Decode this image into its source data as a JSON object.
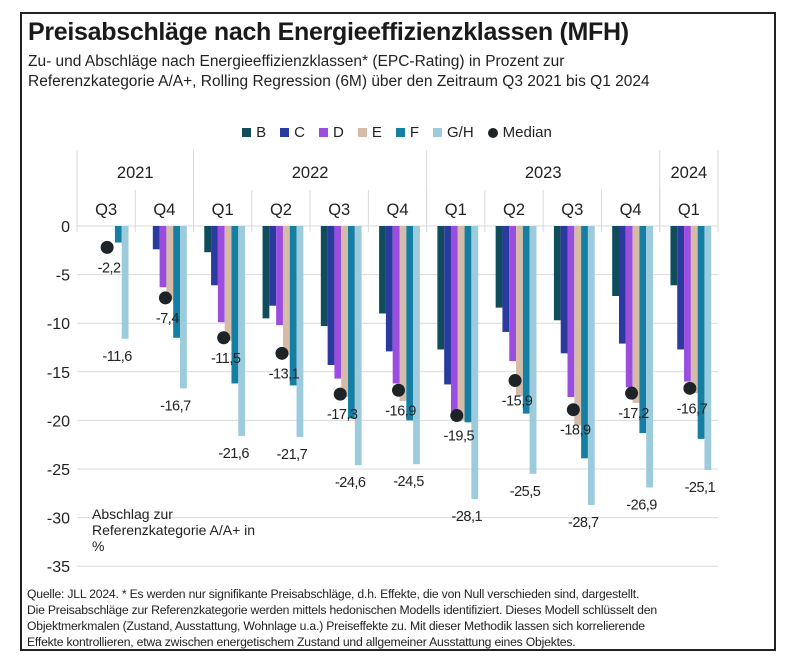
{
  "title": "Preisabschläge nach Energieeffizienzklassen (MFH)",
  "subtitle_line1": "Zu- und Abschläge nach Energieeffizienzklassen* (EPC-Rating) in Prozent zur",
  "subtitle_line2": "Referenzkategorie A/A+, Rolling Regression (6M) über den Zeitraum Q3 2021 bis Q1 2024",
  "footer_lines": [
    "Quelle: JLL 2024. * Es werden nur signifikante Preisabschläge, d.h. Effekte, die von Null verschieden sind, dargestellt.",
    "Die Preisabschläge zur Referenzkategorie werden mittels hedonischen Modells identifiziert. Dieses Modell schlüsselt den",
    "Objektmerkmalen (Zustand, Ausstattung, Wohnlage u.a.) Preiseffekte zu. Mit dieser Methodik lassen sich korrelierende",
    "Effekte kontrollieren, etwa zwischen energetischem Zustand und allgemeiner Ausstattung eines Objektes."
  ],
  "chart_data": {
    "type": "bar",
    "title": "Preisabschläge nach Energieeffizienzklassen (MFH)",
    "ylabel": "Abschlag zur Referenzkategorie A/A+ in %",
    "ylabel_lines": [
      "Abschlag zur",
      "Referenzkategorie A/A+ in",
      "%"
    ],
    "xlabel": "",
    "ylim": [
      -35,
      0
    ],
    "yticks": [
      0,
      -5,
      -10,
      -15,
      -20,
      -25,
      -30,
      -35
    ],
    "grid": true,
    "legend_position": "top-center",
    "years": [
      {
        "label": "2021",
        "span": 2
      },
      {
        "label": "2022",
        "span": 4
      },
      {
        "label": "2023",
        "span": 4
      },
      {
        "label": "2024",
        "span": 1
      }
    ],
    "categories": [
      "Q3",
      "Q4",
      "Q1",
      "Q2",
      "Q3",
      "Q4",
      "Q1",
      "Q2",
      "Q3",
      "Q4",
      "Q1"
    ],
    "series": [
      {
        "name": "B",
        "color": "#0f4c5c",
        "values": [
          null,
          null,
          -2.7,
          -9.5,
          -10.3,
          -9.0,
          -12.7,
          -8.4,
          -9.7,
          -7.2,
          -6.1
        ]
      },
      {
        "name": "C",
        "color": "#2b3a9e",
        "values": [
          null,
          -2.4,
          -6.1,
          -8.2,
          -14.3,
          -12.9,
          -16.3,
          -10.9,
          -13.1,
          -12.1,
          -12.7
        ]
      },
      {
        "name": "D",
        "color": "#9b4de0",
        "values": [
          null,
          -6.3,
          -9.9,
          -10.2,
          -15.7,
          -16.2,
          -19.5,
          -13.9,
          -17.6,
          -16.6,
          -16.0
        ]
      },
      {
        "name": "E",
        "color": "#d6bca8",
        "values": [
          null,
          -7.6,
          -11.8,
          -13.3,
          -17.6,
          -18.0,
          -20.0,
          -17.5,
          -20.5,
          -18.2,
          -17.2
        ]
      },
      {
        "name": "F",
        "color": "#147fa3",
        "values": [
          -1.7,
          -11.5,
          -16.2,
          -16.4,
          -19.8,
          -20.0,
          -20.2,
          -19.3,
          -23.9,
          -21.3,
          -21.9
        ]
      },
      {
        "name": "G/H",
        "color": "#9ccbdc",
        "values": [
          -11.6,
          -16.7,
          -21.6,
          -21.7,
          -24.6,
          -24.5,
          -28.1,
          -25.5,
          -28.7,
          -26.9,
          -25.1
        ]
      }
    ],
    "median": {
      "name": "Median",
      "color": "#1d2327",
      "values": [
        -2.2,
        -7.4,
        -11.5,
        -13.1,
        -17.3,
        -16.9,
        -19.5,
        -15.9,
        -18.9,
        -17.2,
        -16.7
      ]
    },
    "median_labels": [
      "-2,2",
      "-7,4",
      "-11,5",
      "-13,1",
      "-17,3",
      "-16,9",
      "-19,5",
      "-15,9",
      "-18,9",
      "-17,2",
      "-16,7"
    ],
    "gh_labels": [
      "-11,6",
      "-16,7",
      "-21,6",
      "-21,7",
      "-24,6",
      "-24,5",
      "-28,1",
      "-25,5",
      "-28,7",
      "-26,9",
      "-25,1"
    ]
  }
}
